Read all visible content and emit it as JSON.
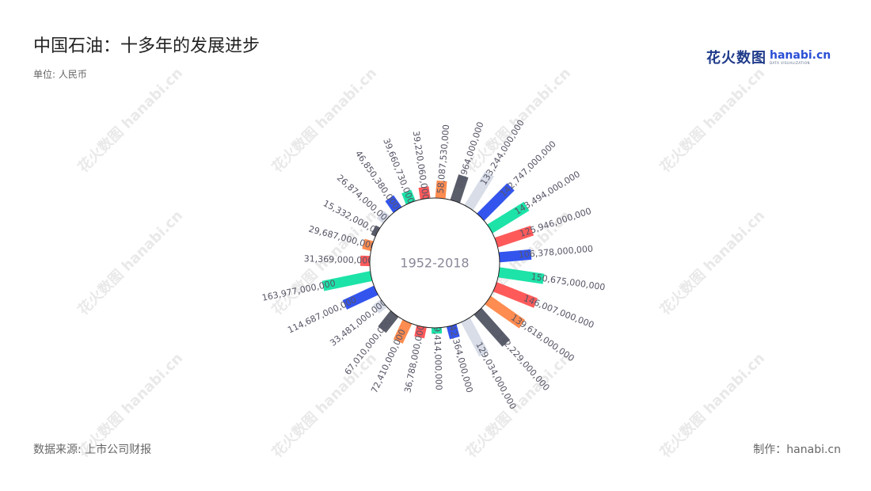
{
  "title": "中国石油：十多年的发展进步",
  "unit": "单位: 人民币",
  "source": "数据来源: 上市公司财报",
  "credit": "制作：hanabi.cn",
  "logo": {
    "cn": "花火数图",
    "en": "hanabi.cn",
    "en_sub": "DATA VISUALIZATION"
  },
  "watermark": "花火数图 hanabi.cn",
  "chart_data": {
    "type": "bar",
    "layout": "radial",
    "center_label": "1952-2018",
    "colors": [
      "#3355ee",
      "#1de3a8",
      "#ff5a5a",
      "#ff8c50",
      "#5a5d6a",
      "#d8dde8"
    ],
    "values": [
      {
        "label": "106,378,000,000",
        "value": 106378000000
      },
      {
        "label": "150,675,000,000",
        "value": 150675000000
      },
      {
        "label": "146,007,000,000",
        "value": 146007000000
      },
      {
        "label": "139,618,000,000",
        "value": 139618000000
      },
      {
        "label": "142,229,000,000",
        "value": 142229000000
      },
      {
        "label": "129,034,000,000",
        "value": 129034000000
      },
      {
        "label": "42,364,000,000",
        "value": 42364000000
      },
      {
        "label": "19,414,000,000",
        "value": 19414000000
      },
      {
        "label": "36,788,000,000",
        "value": 36788000000
      },
      {
        "label": "72,410,000,000",
        "value": 72410000000
      },
      {
        "label": "67,010,000,000",
        "value": 67010000000
      },
      {
        "label": "33,481,000,000",
        "value": 33481000000
      },
      {
        "label": "114,687,000,000",
        "value": 114687000000
      },
      {
        "label": "163,977,000,000",
        "value": 163977000000
      },
      {
        "label": "31,369,000,000",
        "value": 31369000000
      },
      {
        "label": "29,687,000,000",
        "value": 29687000000
      },
      {
        "label": "15,332,000,000",
        "value": 15332000000
      },
      {
        "label": "26,874,000,000",
        "value": 26874000000
      },
      {
        "label": "46,850,380,000",
        "value": 46850380000
      },
      {
        "label": "39,660,730,000",
        "value": 39660730000
      },
      {
        "label": "39,220,060,000",
        "value": 39220060000
      },
      {
        "label": "58,087,530,000",
        "value": 58087530000
      },
      {
        "label": "88,964,000,000",
        "value": 88964000000
      },
      {
        "label": "133,244,000,000",
        "value": 133244000000
      },
      {
        "label": "142,747,000,000",
        "value": 142747000000
      },
      {
        "label": "143,494,000,000",
        "value": 143494000000
      },
      {
        "label": "125,946,000,000",
        "value": 125946000000
      }
    ]
  }
}
